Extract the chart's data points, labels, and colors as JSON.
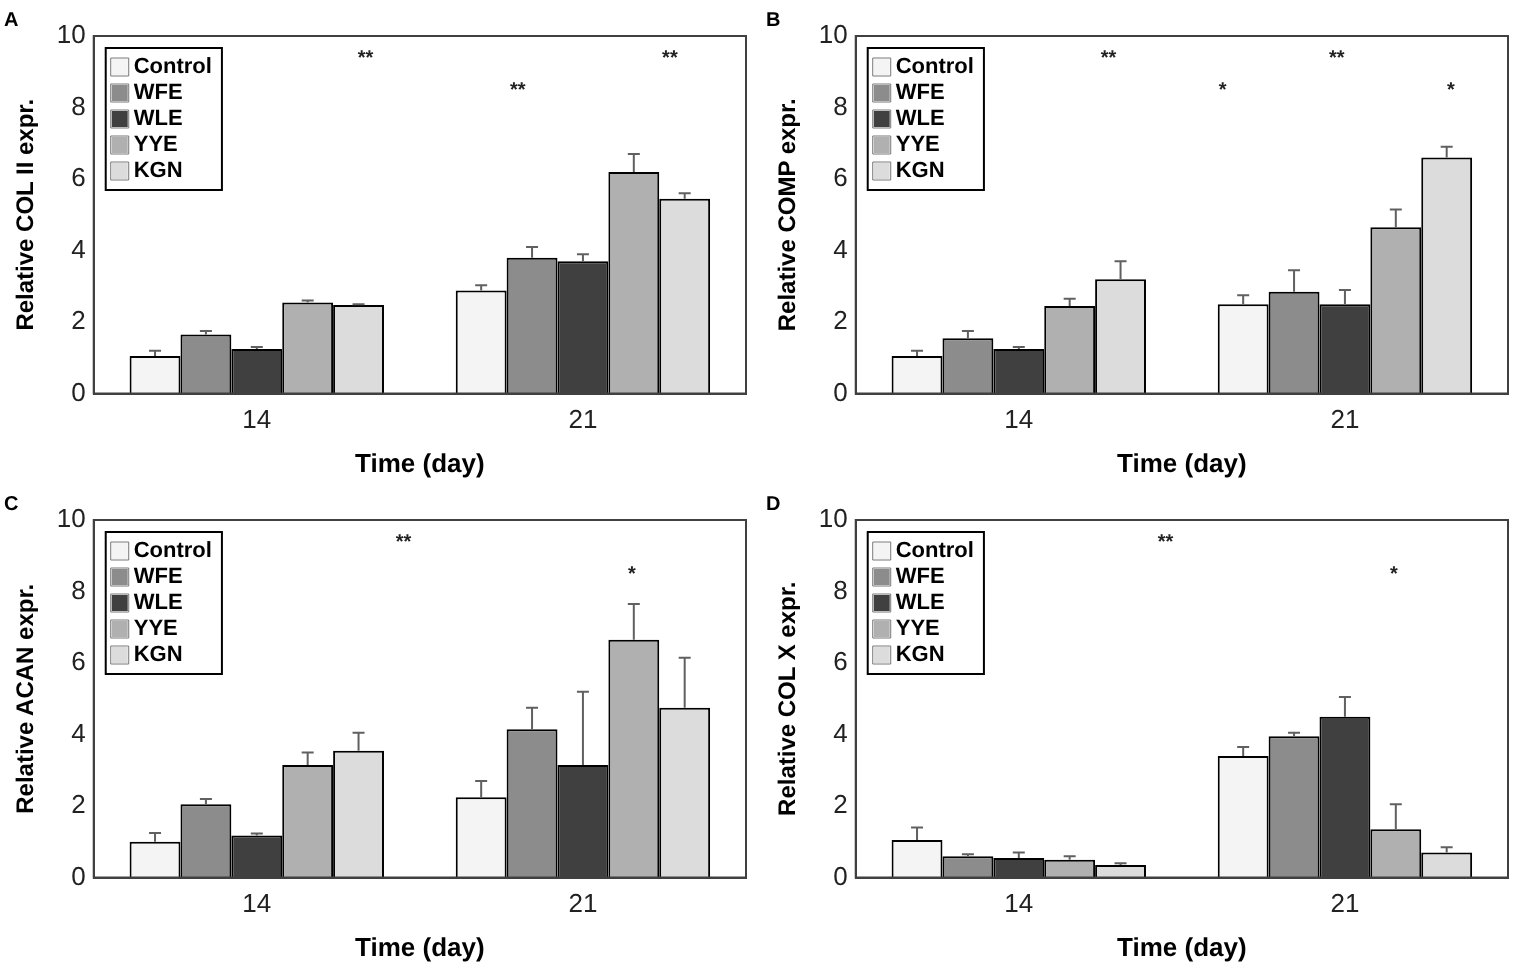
{
  "chart_data": [
    {
      "type": "bar",
      "title": "A",
      "xlabel": "Time (day)",
      "ylabel": "Relative COL II expr.",
      "categories": [
        "14",
        "21"
      ],
      "ylim": [
        0,
        10
      ],
      "yticks": [
        0,
        2,
        4,
        6,
        8,
        10
      ],
      "grid": false,
      "legend": "top left",
      "series": [
        {
          "name": "Control",
          "color": "#f4f4f4",
          "values": [
            1.05,
            2.88
          ],
          "errors": [
            0.15,
            0.15
          ]
        },
        {
          "name": "WFE",
          "color": "#8c8c8c",
          "values": [
            1.65,
            3.8
          ],
          "errors": [
            0.1,
            0.3
          ]
        },
        {
          "name": "WLE",
          "color": "#404040",
          "values": [
            1.25,
            3.7
          ],
          "errors": [
            0.05,
            0.2
          ]
        },
        {
          "name": "YYE",
          "color": "#b0b0b0",
          "values": [
            2.55,
            6.2
          ],
          "errors": [
            0.05,
            0.5
          ]
        },
        {
          "name": "KGN",
          "color": "#dcdcdc",
          "values": [
            2.48,
            5.45
          ],
          "errors": [
            0.02,
            0.15
          ]
        }
      ],
      "annotations": [
        "**",
        "**",
        "**"
      ]
    },
    {
      "type": "bar",
      "title": "B",
      "xlabel": "Time (day)",
      "ylabel": "Relative COMP expr.",
      "categories": [
        "14",
        "21"
      ],
      "ylim": [
        0,
        10
      ],
      "yticks": [
        0,
        2,
        4,
        6,
        8,
        10
      ],
      "grid": false,
      "legend": "top left",
      "series": [
        {
          "name": "Control",
          "color": "#f4f4f4",
          "values": [
            1.05,
            2.5
          ],
          "errors": [
            0.15,
            0.25
          ]
        },
        {
          "name": "WFE",
          "color": "#8c8c8c",
          "values": [
            1.55,
            2.85
          ],
          "errors": [
            0.2,
            0.6
          ]
        },
        {
          "name": "WLE",
          "color": "#404040",
          "values": [
            1.25,
            2.5
          ],
          "errors": [
            0.05,
            0.4
          ]
        },
        {
          "name": "YYE",
          "color": "#b0b0b0",
          "values": [
            2.45,
            4.65
          ],
          "errors": [
            0.2,
            0.5
          ]
        },
        {
          "name": "KGN",
          "color": "#dcdcdc",
          "values": [
            3.2,
            6.6
          ],
          "errors": [
            0.5,
            0.3
          ]
        }
      ],
      "annotations": [
        "**",
        "*",
        "**",
        "*"
      ]
    },
    {
      "type": "bar",
      "title": "C",
      "xlabel": "Time (day)",
      "ylabel": "Relative ACAN expr.",
      "categories": [
        "14",
        "21"
      ],
      "ylim": [
        0,
        10
      ],
      "yticks": [
        0,
        2,
        4,
        6,
        8,
        10
      ],
      "grid": false,
      "legend": "top left",
      "series": [
        {
          "name": "Control",
          "color": "#f4f4f4",
          "values": [
            1.0,
            2.25
          ],
          "errors": [
            0.25,
            0.45
          ]
        },
        {
          "name": "WFE",
          "color": "#8c8c8c",
          "values": [
            2.05,
            4.15
          ],
          "errors": [
            0.15,
            0.6
          ]
        },
        {
          "name": "WLE",
          "color": "#404040",
          "values": [
            1.18,
            3.15
          ],
          "errors": [
            0.05,
            2.05
          ]
        },
        {
          "name": "YYE",
          "color": "#b0b0b0",
          "values": [
            3.15,
            6.65
          ],
          "errors": [
            0.35,
            1.0
          ]
        },
        {
          "name": "KGN",
          "color": "#dcdcdc",
          "values": [
            3.55,
            4.75
          ],
          "errors": [
            0.5,
            1.4
          ]
        }
      ],
      "annotations": [
        "**",
        "*"
      ]
    },
    {
      "type": "bar",
      "title": "D",
      "xlabel": "Time (day)",
      "ylabel": "Relative COL X expr.",
      "categories": [
        "14",
        "21"
      ],
      "ylim": [
        0,
        10
      ],
      "yticks": [
        0,
        2,
        4,
        6,
        8,
        10
      ],
      "grid": false,
      "legend": "top left",
      "series": [
        {
          "name": "Control",
          "color": "#f4f4f4",
          "values": [
            1.05,
            3.4
          ],
          "errors": [
            0.35,
            0.25
          ]
        },
        {
          "name": "WFE",
          "color": "#8c8c8c",
          "values": [
            0.6,
            3.95
          ],
          "errors": [
            0.05,
            0.1
          ]
        },
        {
          "name": "WLE",
          "color": "#404040",
          "values": [
            0.55,
            4.5
          ],
          "errors": [
            0.15,
            0.55
          ]
        },
        {
          "name": "YYE",
          "color": "#b0b0b0",
          "values": [
            0.5,
            1.35
          ],
          "errors": [
            0.1,
            0.7
          ]
        },
        {
          "name": "KGN",
          "color": "#dcdcdc",
          "values": [
            0.35,
            0.7
          ],
          "errors": [
            0.05,
            0.15
          ]
        }
      ],
      "annotations": [
        "**",
        "*"
      ]
    }
  ]
}
